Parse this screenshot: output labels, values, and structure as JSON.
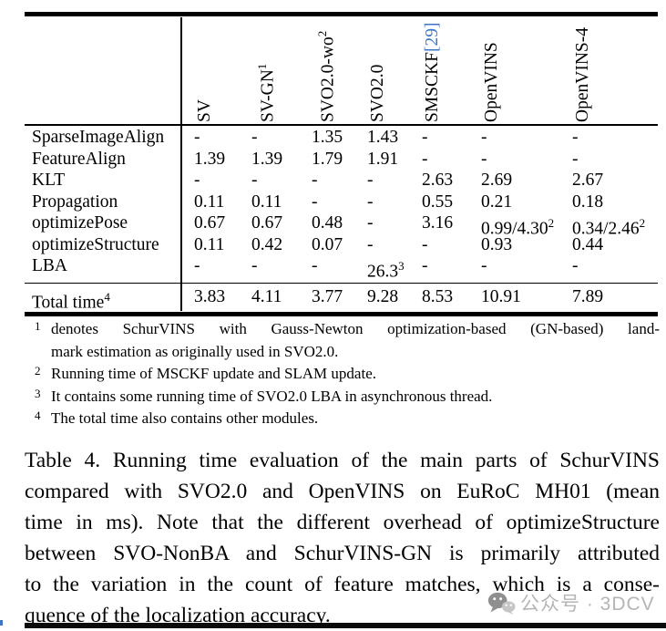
{
  "colors": {
    "citation_blue": "#3c76c8",
    "watermark_gray": "#b5b5b5",
    "rule_black": "#000000"
  },
  "table": {
    "headers": [
      {
        "text": "SV"
      },
      {
        "text": "SV-GN",
        "sup": "1"
      },
      {
        "text": "SVO2.0-wo",
        "sup": "2"
      },
      {
        "text": "SVO2.0"
      },
      {
        "text": "SMSCKF",
        "cite": "[29]"
      },
      {
        "text": "OpenVINS"
      },
      {
        "text": "OpenVINS-4"
      }
    ],
    "rows": [
      {
        "label": "SparseImageAlign",
        "values": [
          "-",
          "-",
          "1.35",
          "1.43",
          "-",
          "-",
          "-"
        ]
      },
      {
        "label": "FeatureAlign",
        "values": [
          "1.39",
          "1.39",
          "1.79",
          "1.91",
          "-",
          "-",
          "-"
        ]
      },
      {
        "label": "KLT",
        "values": [
          "-",
          "-",
          "-",
          "-",
          "2.63",
          "2.69",
          "2.67"
        ]
      },
      {
        "label": "Propagation",
        "values": [
          "0.11",
          "0.11",
          "-",
          "-",
          "0.55",
          "0.21",
          "0.18"
        ]
      },
      {
        "label": "optimizePose",
        "values": [
          "0.67",
          "0.67",
          "0.48",
          "-",
          "3.16",
          "0.99/4.30^2",
          "0.34/2.46^2"
        ]
      },
      {
        "label": "optimizeStructure",
        "values": [
          "0.11",
          "0.42",
          "0.07",
          "-",
          "-",
          "0.93",
          "0.44"
        ]
      },
      {
        "label": "LBA",
        "values": [
          "-",
          "-",
          "-",
          "26.3^3",
          "-",
          "-",
          "-"
        ]
      }
    ],
    "total": {
      "label": "Total time",
      "sup": "4",
      "values": [
        "3.83",
        "4.11",
        "3.77",
        "9.28",
        "8.53",
        "10.91",
        "7.89"
      ]
    }
  },
  "footnotes": [
    {
      "marker": "1",
      "lines": [
        "denotes SchurVINS with Gauss-Newton optimization-based (GN-based) land-",
        "mark estimation as originally used in SVO2.0."
      ]
    },
    {
      "marker": "2",
      "lines": [
        "Running time of MSCKF update and SLAM update."
      ]
    },
    {
      "marker": "3",
      "lines": [
        "It contains some running time of SVO2.0 LBA in asynchronous thread."
      ]
    },
    {
      "marker": "4",
      "lines": [
        "The total time also contains other modules."
      ]
    }
  ],
  "caption": {
    "lines": [
      "Table 4. Running time evaluation of the main parts of SchurVINS",
      "compared with SVO2.0 and OpenVINS on EuRoC MH01 (mean",
      "time in ms). Note that the different overhead of optimizeStructure",
      "between SVO-NonBA and SchurVINS-GN is primarily attributed",
      "to the variation in the count of feature matches, which is a conse-",
      "quence of the localization accuracy."
    ]
  },
  "watermark": {
    "text": "公众号 · 3DCV"
  }
}
